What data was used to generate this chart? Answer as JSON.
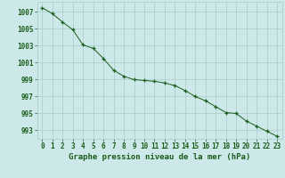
{
  "x": [
    0,
    1,
    2,
    3,
    4,
    5,
    6,
    7,
    8,
    9,
    10,
    11,
    12,
    13,
    14,
    15,
    16,
    17,
    18,
    19,
    20,
    21,
    22,
    23
  ],
  "y": [
    1007.5,
    1006.8,
    1005.8,
    1004.9,
    1003.1,
    1002.7,
    1001.5,
    1000.1,
    999.4,
    999.0,
    998.9,
    998.8,
    998.6,
    998.3,
    997.7,
    997.0,
    996.5,
    995.8,
    995.1,
    995.0,
    994.1,
    993.5,
    992.9,
    992.3
  ],
  "line_color": "#1a5c1a",
  "marker_color": "#1a5c1a",
  "bg_color": "#cce8e8",
  "grid_color": "#aacccc",
  "text_color": "#1a5c1a",
  "xlabel": "Graphe pression niveau de la mer (hPa)",
  "ylim": [
    992,
    1008.2
  ],
  "yticks": [
    993,
    995,
    997,
    999,
    1001,
    1003,
    1005,
    1007
  ],
  "xticks": [
    0,
    1,
    2,
    3,
    4,
    5,
    6,
    7,
    8,
    9,
    10,
    11,
    12,
    13,
    14,
    15,
    16,
    17,
    18,
    19,
    20,
    21,
    22,
    23
  ],
  "tick_fontsize": 5.5,
  "xlabel_fontsize": 6.5
}
